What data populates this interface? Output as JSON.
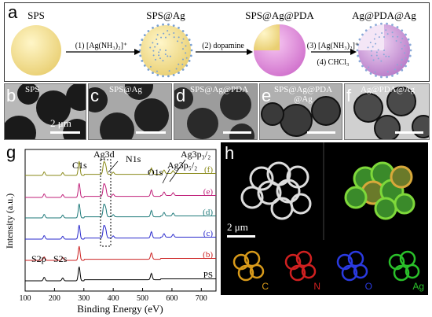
{
  "panel_a": {
    "letter": "a",
    "stages": [
      {
        "label": "SPS"
      },
      {
        "label": "SPS@Ag"
      },
      {
        "label": "SPS@Ag@PDA"
      },
      {
        "label": "Ag@PDA@Ag"
      }
    ],
    "steps": [
      {
        "text": "(1) [Ag(NH₃)₂]⁺"
      },
      {
        "text": "(2) dopamine"
      },
      {
        "text": "(3) [Ag(NH₃)₂]⁺"
      },
      {
        "text": "(4) CHCl₃"
      }
    ]
  },
  "tem_panels": [
    {
      "letter": "b",
      "label": "SPS",
      "scale": "2 μm"
    },
    {
      "letter": "c",
      "label": "SPS@Ag"
    },
    {
      "letter": "d",
      "label": "SPS@Ag@PDA"
    },
    {
      "letter": "e",
      "label": "SPS@Ag@PDA\n@Ag"
    },
    {
      "letter": "f",
      "label": "Ag@PDA@Ag"
    }
  ],
  "panel_g": {
    "letter": "g",
    "chart_data": {
      "type": "line",
      "xlabel": "Binding Energy (eV)",
      "ylabel": "Intensity (a.u.)",
      "xlim": [
        100,
        750
      ],
      "xticks": [
        100,
        200,
        300,
        400,
        500,
        600,
        700
      ],
      "series": [
        {
          "name": "PS",
          "color": "#000000"
        },
        {
          "name": "(b)",
          "color": "#cc2222"
        },
        {
          "name": "(c)",
          "color": "#2a2acc"
        },
        {
          "name": "(d)",
          "color": "#1f7a7a"
        },
        {
          "name": "(e)",
          "color": "#c0207a"
        },
        {
          "name": "(f)",
          "color": "#8a8a1a"
        }
      ],
      "annotations": [
        "C1s",
        "Ag3d",
        "N1s",
        "O1s",
        "Ag3p₅/₂",
        "Ag3p₃/₂",
        "S2p",
        "S2s"
      ]
    }
  },
  "panel_h": {
    "letter": "h",
    "scale": "2 μm",
    "elements": [
      {
        "symbol": "C",
        "color": "#d89a1a"
      },
      {
        "symbol": "N",
        "color": "#d02020"
      },
      {
        "symbol": "O",
        "color": "#2a3ae0"
      },
      {
        "symbol": "Ag",
        "color": "#2ac02a"
      }
    ]
  }
}
